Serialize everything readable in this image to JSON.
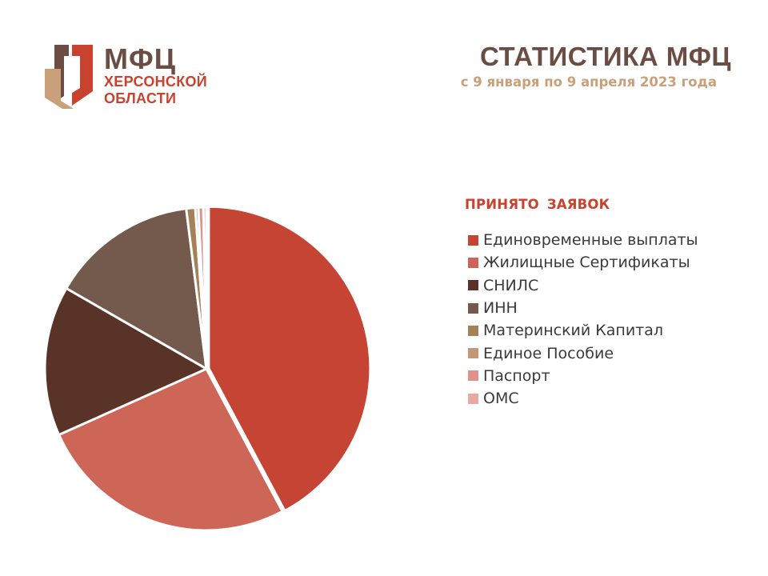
{
  "logo": {
    "title": "МФЦ",
    "line1": "ХЕРСОНСКОЙ",
    "line2": "ОБЛАСТИ",
    "colors": {
      "dark": "#6b4d43",
      "red": "#c8432f",
      "tan": "#c9a07a"
    }
  },
  "header": {
    "title": "СТАТИСТИКА МФЦ",
    "subtitle": "с 9 января по 9 апреля 2023 года"
  },
  "chart_data": {
    "type": "pie",
    "title": "",
    "legend_title": "ПРИНЯТО  ЗАЯВОК",
    "legend_placement": "right",
    "start_angle_deg": 0,
    "direction": "clockwise",
    "slices": [
      {
        "label": "Единовременные выплаты",
        "value": 42.2,
        "color": "#c54434"
      },
      {
        "label": "Жилищные Сертификаты",
        "value": 26.1,
        "color": "#cd6656"
      },
      {
        "label": "СНИЛС",
        "value": 15.0,
        "color": "#5a3328"
      },
      {
        "label": "ИНН",
        "value": 14.7,
        "color": "#735a4d"
      },
      {
        "label": "Материнский Капитал",
        "value": 0.9,
        "color": "#a58058"
      },
      {
        "label": "Единое Пособие",
        "value": 0.3,
        "color": "#c49876"
      },
      {
        "label": "Паспорт",
        "value": 0.5,
        "color": "#e2908a"
      },
      {
        "label": "ОМС",
        "value": 0.3,
        "color": "#eaa8a3"
      }
    ]
  }
}
